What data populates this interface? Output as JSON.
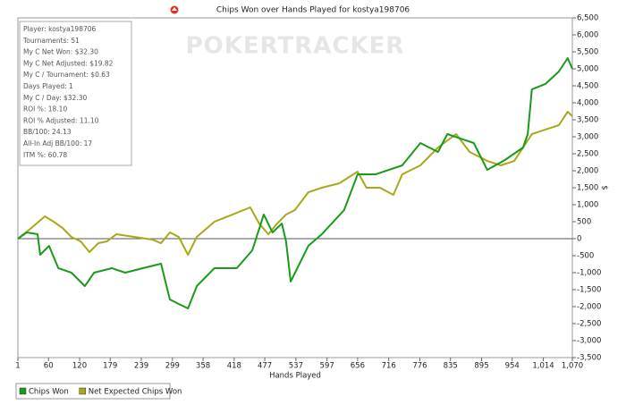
{
  "chart_data": {
    "type": "line",
    "title": "Chips Won over Hands Played for kostya198706",
    "watermark": "POKERTRACKER",
    "x_label": "Hands Played",
    "y_label": "$",
    "stats": [
      "Player: kostya198706",
      "Tournaments: 51",
      "My C Net Won: $32.30",
      "My C Net Adjusted: $19.82",
      "My C / Tournament: $0.63",
      "Days Played: 1",
      "My C / Day: $32.30",
      "ROI %: 18.10",
      "ROI % Adjusted: 11.10",
      "BB/100: 24.13",
      "All-In Adj BB/100: 17",
      "ITM %: 60.78"
    ],
    "xlim": [
      1,
      1070
    ],
    "xticks": [
      1,
      60,
      120,
      179,
      239,
      299,
      358,
      418,
      477,
      537,
      597,
      656,
      716,
      776,
      835,
      895,
      954,
      {
        "value": 1014,
        "label": "1,014"
      },
      {
        "value": 1070,
        "label": "1,070"
      }
    ],
    "ylim": [
      -3500,
      6500
    ],
    "yticks": [
      {
        "value": -3500,
        "label": "-3,500"
      },
      {
        "value": -3000,
        "label": "-3,000"
      },
      {
        "value": -2500,
        "label": "-2,500"
      },
      {
        "value": -2000,
        "label": "-2,000"
      },
      {
        "value": -1500,
        "label": "-1,500"
      },
      {
        "value": -1000,
        "label": "-1,000"
      },
      -500,
      0,
      500,
      {
        "value": 1000,
        "label": "1,000"
      },
      {
        "value": 1500,
        "label": "1,500"
      },
      {
        "value": 2000,
        "label": "2,000"
      },
      {
        "value": 2500,
        "label": "2,500"
      },
      {
        "value": 3000,
        "label": "3,000"
      },
      {
        "value": 3500,
        "label": "3,500"
      },
      {
        "value": 4000,
        "label": "4,000"
      },
      {
        "value": 4500,
        "label": "4,500"
      },
      {
        "value": 5000,
        "label": "5,000"
      },
      {
        "value": 5500,
        "label": "5,500"
      },
      {
        "value": 6000,
        "label": "6,000"
      },
      {
        "value": 6500,
        "label": "6,500"
      }
    ],
    "series": [
      {
        "name": "Chips Won",
        "color": "#1a9a1a",
        "x": [
          1,
          18,
          39,
          44,
          61,
          79,
          104,
          130,
          148,
          182,
          208,
          242,
          277,
          294,
          311,
          329,
          346,
          380,
          423,
          453,
          475,
          492,
          510,
          518,
          527,
          561,
          587,
          630,
          656,
          691,
          742,
          777,
          811,
          829,
          880,
          906,
          940,
          975,
          984,
          992,
          1018,
          1044,
          1061,
          1070
        ],
        "values": [
          0,
          184,
          132,
          -474,
          -211,
          -868,
          -1000,
          -1395,
          -1000,
          -868,
          -1000,
          -868,
          -737,
          -1789,
          -1921,
          -2053,
          -1395,
          -868,
          -868,
          -342,
          711,
          184,
          447,
          -79,
          -1263,
          -211,
          132,
          842,
          1895,
          1895,
          2158,
          2816,
          2553,
          3079,
          2816,
          2026,
          2316,
          2684,
          3079,
          4395,
          4553,
          4921,
          5316,
          5000
        ]
      },
      {
        "name": "Net Expected Chips Won",
        "color": "#a8a81a",
        "x": [
          1,
          27,
          53,
          70,
          87,
          104,
          122,
          139,
          156,
          173,
          191,
          225,
          260,
          277,
          294,
          311,
          329,
          346,
          380,
          415,
          449,
          466,
          484,
          501,
          518,
          535,
          561,
          587,
          621,
          656,
          673,
          699,
          725,
          742,
          777,
          811,
          846,
          872,
          906,
          932,
          958,
          992,
          1018,
          1044,
          1061,
          1070
        ],
        "values": [
          0,
          316,
          658,
          500,
          316,
          53,
          -79,
          -395,
          -132,
          -79,
          132,
          53,
          -26,
          -132,
          184,
          53,
          -474,
          53,
          500,
          711,
          921,
          447,
          132,
          447,
          711,
          842,
          1368,
          1500,
          1632,
          1974,
          1500,
          1500,
          1289,
          1895,
          2158,
          2684,
          3079,
          2553,
          2289,
          2158,
          2289,
          3079,
          3211,
          3342,
          3737,
          3605
        ]
      }
    ]
  }
}
